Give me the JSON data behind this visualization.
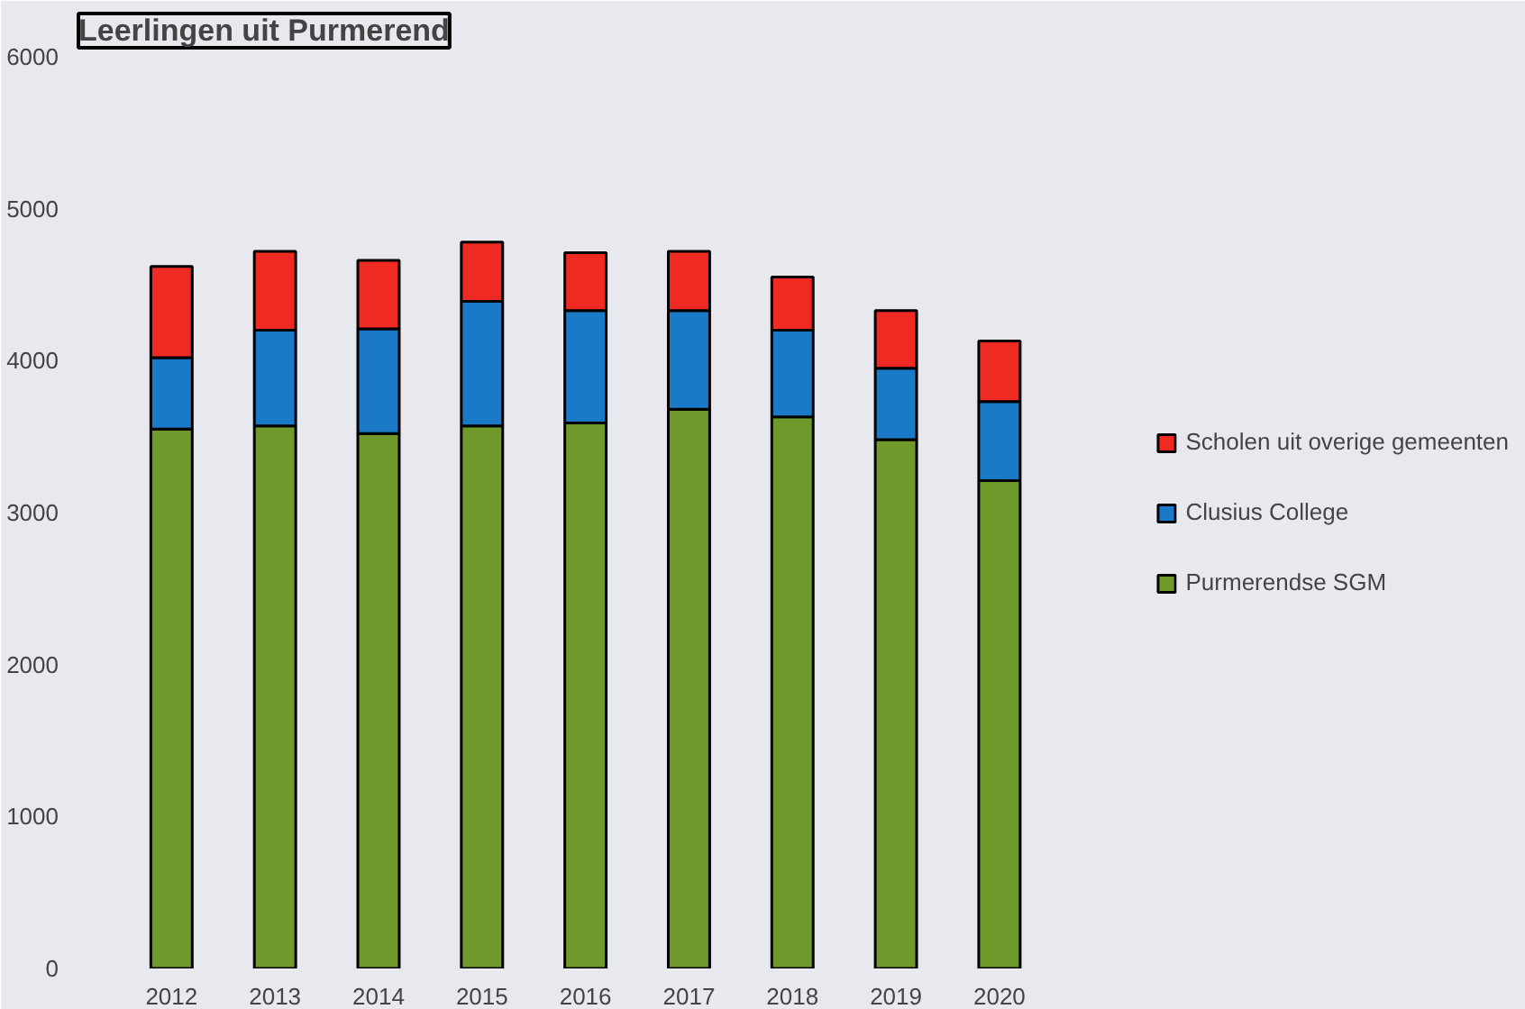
{
  "chart_data": {
    "type": "bar",
    "title": "Leerlingen uit Purmerend",
    "stacked": true,
    "categories": [
      "2012",
      "2013",
      "2014",
      "2015",
      "2016",
      "2017",
      "2018",
      "2019",
      "2020"
    ],
    "series": [
      {
        "name": "Purmerendse SGM",
        "color": "#6f9a2b",
        "values": [
          3550,
          3570,
          3520,
          3570,
          3590,
          3680,
          3630,
          3480,
          3210
        ]
      },
      {
        "name": "Clusius College",
        "color": "#1a7ac8",
        "values": [
          470,
          630,
          690,
          820,
          740,
          650,
          570,
          470,
          520
        ]
      },
      {
        "name": "Scholen uit overige gemeenten",
        "color": "#ee2a22",
        "values": [
          600,
          520,
          450,
          390,
          380,
          390,
          350,
          380,
          400
        ]
      }
    ],
    "ylim": [
      0,
      6000
    ],
    "yticks": [
      0,
      1000,
      2000,
      3000,
      4000,
      5000,
      6000
    ],
    "grid": false,
    "legend": "right"
  }
}
